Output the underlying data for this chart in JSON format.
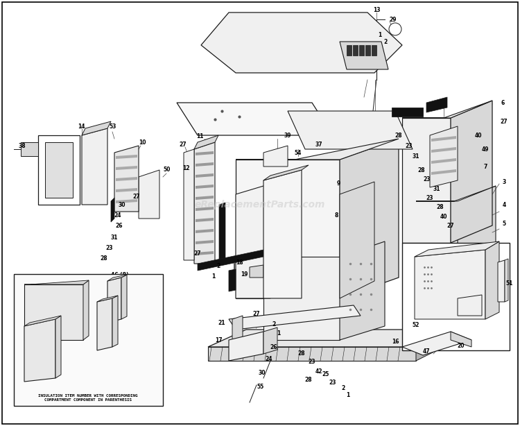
{
  "bg_color": "#ffffff",
  "watermark": "eReplacementParts.com",
  "line_color": "#1a1a1a",
  "fill_light": "#f0f0f0",
  "fill_mid": "#d8d8d8",
  "fill_dark": "#b0b0b0",
  "fill_black": "#111111",
  "inset_text": "INSULATION ITEM NUMBER WITH CORRESPONDING\nCOMPARTMENT COMPONENT IN PARENTHESIS"
}
